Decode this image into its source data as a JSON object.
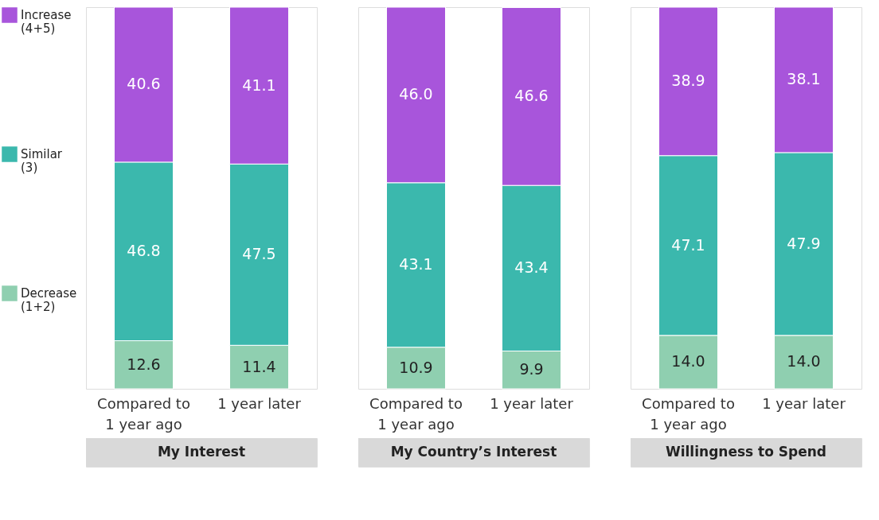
{
  "chart_data": [
    {
      "type": "bar",
      "stacked": true,
      "title": "My Interest",
      "legend": "left",
      "categories": [
        "Compared to\n1 year ago",
        "1 year later"
      ],
      "series": [
        {
          "name": "Decrease\n(1+2)",
          "color": "#8fcfb0",
          "values": [
            12.6,
            11.4
          ],
          "value_labels": [
            "12.6",
            "11.4"
          ]
        },
        {
          "name": "Similar\n(3)",
          "color": "#3bb8ad",
          "values": [
            46.8,
            47.5
          ],
          "value_labels": [
            "46.8",
            "47.5"
          ]
        },
        {
          "name": "Increase\n(4+5)",
          "color": "#a855db",
          "values": [
            40.6,
            41.1
          ],
          "value_labels": [
            "40.6",
            "41.1"
          ]
        }
      ]
    },
    {
      "type": "bar",
      "stacked": true,
      "title": "My Country’s Interest",
      "categories": [
        "Compared to\n1 year ago",
        "1 year later"
      ],
      "series": [
        {
          "color": "#8fcfb0",
          "values": [
            10.9,
            9.9
          ],
          "value_labels": [
            "10.9",
            "9.9"
          ]
        },
        {
          "color": "#3bb8ad",
          "values": [
            43.1,
            43.4
          ],
          "value_labels": [
            "43.1",
            "43.4"
          ]
        },
        {
          "color": "#a855db",
          "values": [
            46.0,
            46.6
          ],
          "value_labels": [
            "46.0",
            "46.6"
          ]
        }
      ]
    },
    {
      "type": "bar",
      "stacked": true,
      "title": "Willingness to Spend",
      "categories": [
        "Compared to\n1 year ago",
        "1 year later"
      ],
      "series": [
        {
          "color": "#8fcfb0",
          "values": [
            14.0,
            14.0
          ],
          "value_labels": [
            "14.0",
            "14.0"
          ]
        },
        {
          "color": "#3bb8ad",
          "values": [
            47.1,
            47.9
          ],
          "value_labels": [
            "47.1",
            "47.9"
          ]
        },
        {
          "color": "#a855db",
          "values": [
            38.9,
            38.1
          ],
          "value_labels": [
            "38.9",
            "38.1"
          ]
        }
      ]
    }
  ]
}
